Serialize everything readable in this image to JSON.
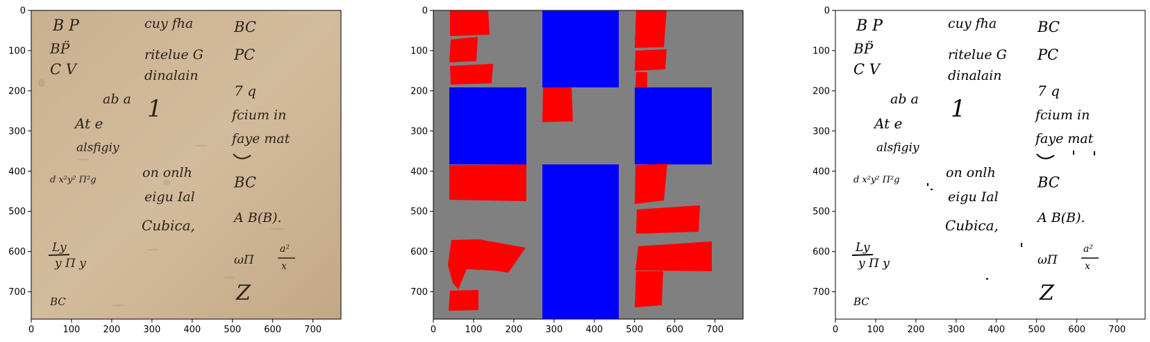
{
  "figure": {
    "panels": [
      {
        "name": "manuscript-photo",
        "x_ticks": [
          "0",
          "100",
          "200",
          "300",
          "400",
          "500",
          "600",
          "700"
        ],
        "y_ticks": [
          "0",
          "100",
          "200",
          "300",
          "400",
          "500",
          "600",
          "700"
        ]
      },
      {
        "name": "layout-mask",
        "x_ticks": [
          "0",
          "100",
          "200",
          "300",
          "400",
          "500",
          "600",
          "700"
        ],
        "y_ticks": [
          "0",
          "100",
          "200",
          "300",
          "400",
          "500",
          "600",
          "700"
        ]
      },
      {
        "name": "binarized-text",
        "x_ticks": [
          "0",
          "100",
          "200",
          "300",
          "400",
          "500",
          "600",
          "700"
        ],
        "y_ticks": [
          "0",
          "100",
          "200",
          "300",
          "400",
          "500",
          "600",
          "700"
        ]
      }
    ],
    "colors": {
      "parchment": "#cdb698",
      "mask_background": "#808080",
      "text_region": "#ff0000",
      "column_region": "#0000ff",
      "ink": "#1c1712"
    },
    "handwriting": {
      "left_column": [
        "B P",
        "BP̈",
        "C V",
        "ab a",
        "At e",
        "alsfigiy",
        "d x²y² Π²g",
        "Ly",
        "y  Π y",
        "BC"
      ],
      "middle_column": [
        "cuy fha",
        "ritelue G",
        "dinalain",
        "1",
        "on onlh",
        "eigu Ial",
        "Cubica,"
      ],
      "right_column": [
        "BC",
        "PC",
        "7 q",
        "fcium in",
        "faye mat",
        "BC",
        "A B(B).",
        "ωΠ",
        "a²",
        "x",
        "Z"
      ]
    }
  }
}
